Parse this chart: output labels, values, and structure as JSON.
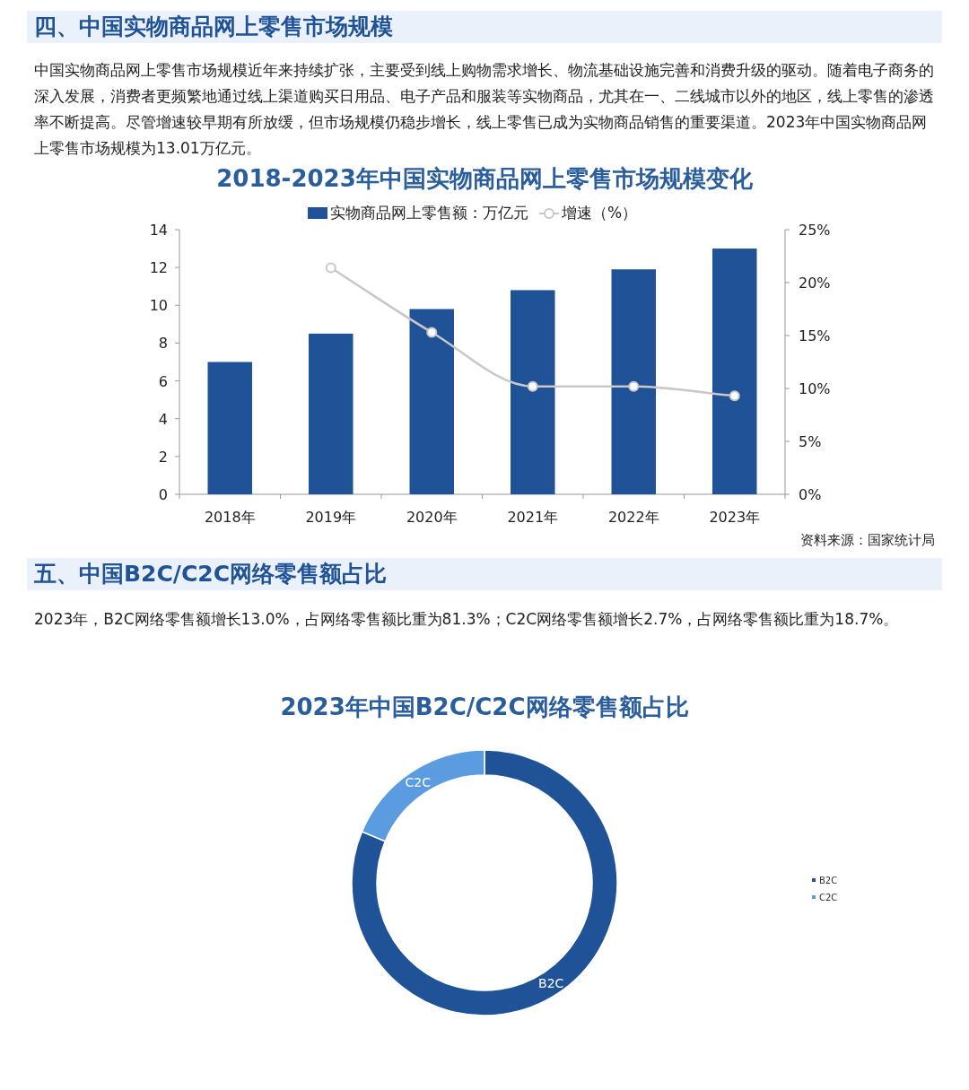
{
  "chart_data": [
    {
      "type": "bar",
      "title": "2018-2023年中国实物商品网上零售市场规模变化",
      "annotations": [
        "四、中国实物商品网上零售市场规模",
        "中国实物商品网上零售市场规模近年来持续扩张，主要受到线上购物需求增长、物流基础设施完善和消费升级的驱动。随着电子商务的深入发展，消费者更频繁地通过线上渠道购买日用品、电子产品和服装等实物商品，尤其在一、二线城市以外的地区，线上零售的渗透率不断提高。尽管增速较早期有所放缓，但市场规模仍稳步增长，线上零售已成为实物商品销售的重要渠道。2023年中国实物商品网上零售市场规模为13.01万亿元。",
        "资料来源：国家统计局"
      ],
      "categories": [
        "2018年",
        "2019年",
        "2020年",
        "2021年",
        "2022年",
        "2023年"
      ],
      "series": [
        {
          "name": "实物商品网上零售额：万亿元",
          "type": "bar",
          "color": "#1f5296",
          "values": [
            7.0,
            8.5,
            9.8,
            10.8,
            11.9,
            13.0
          ]
        },
        {
          "name": "增速（%）",
          "type": "line",
          "axis": "y2",
          "color": "#c8c8c8",
          "marker": "circle",
          "values": [
            null,
            21.4,
            15.3,
            10.2,
            10.2,
            9.3
          ]
        }
      ],
      "ylim": [
        0,
        14
      ],
      "yticks": [
        0,
        2,
        4,
        6,
        8,
        10,
        12,
        14
      ],
      "y2lim": [
        0,
        25
      ],
      "y2ticks": [
        {
          "value": 0,
          "label": "0%"
        },
        {
          "value": 5,
          "label": "5%"
        },
        {
          "value": 10,
          "label": "10%"
        },
        {
          "value": 15,
          "label": "15%"
        },
        {
          "value": 20,
          "label": "20%"
        },
        {
          "value": 25,
          "label": "25%"
        }
      ],
      "legend": "top",
      "grid": false
    },
    {
      "type": "donut",
      "title": "2023年中国B2C/C2C网络零售额占比",
      "annotations": [
        "五、中国B2C/C2C网络零售额占比",
        "2023年，B2C网络零售额增长13.0%，占网络零售额比重为81.3%；C2C网络零售额增长2.7%，占网络零售额比重为18.7%。"
      ],
      "categories": [
        "B2C",
        "C2C"
      ],
      "values": [
        81.3,
        18.7
      ],
      "colors": [
        "#1f5296",
        "#5b9be0"
      ],
      "legend": "right"
    }
  ]
}
